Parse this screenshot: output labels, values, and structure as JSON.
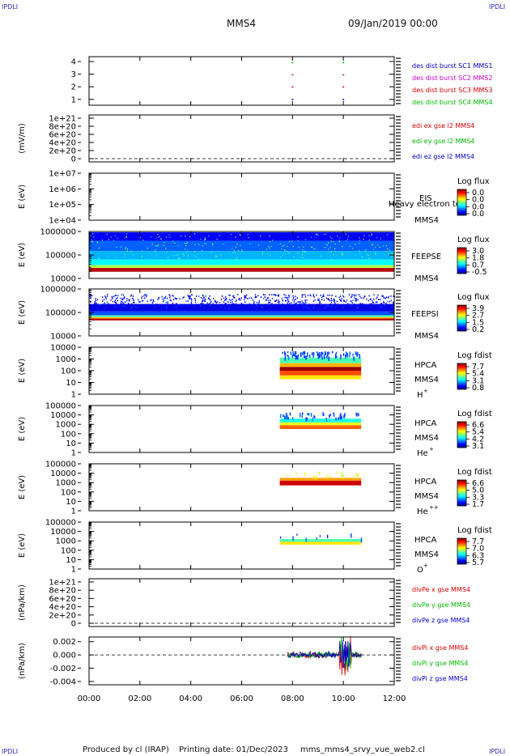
{
  "corner_label": "IPDLI",
  "header": {
    "spacecraft": "MMS4",
    "date": "09/Jan/2019 00:00"
  },
  "footer": {
    "produced_by": "Produced by cl (IRAP)",
    "printing_date": "Printing date: 01/Dec/2023",
    "script": "mms_mms4_srvy_vue_web2.cl"
  },
  "colors": {
    "blue": "#0000cc",
    "magenta": "#cc00cc",
    "red": "#dd0000",
    "green": "#00bb00"
  },
  "chart_data": {
    "type": "heatmap",
    "x": {
      "range": [
        "00:00",
        "12:00"
      ],
      "ticks": [
        "00:00",
        "02:00",
        "04:00",
        "06:00",
        "08:00",
        "10:00",
        "12:00"
      ]
    },
    "panels": [
      {
        "id": "burst",
        "ylabel": "",
        "yticks": [
          "4",
          "3",
          "2",
          "1"
        ],
        "legend": [
          {
            "text": "des dist burst SC1 MMS1",
            "color": "#0000cc"
          },
          {
            "text": "des dist burst SC2 MMS2",
            "color": "#cc00cc"
          },
          {
            "text": "des dist burst SC3 MMS3",
            "color": "#dd0000"
          },
          {
            "text": "des dist burst SC4 MMS4",
            "color": "#00bb00"
          }
        ],
        "burst_times_hours": [
          8.0,
          10.0
        ]
      },
      {
        "id": "edi",
        "ylabel": "(mV/m)",
        "yticks": [
          "1e+21",
          "8e+20",
          "6e+20",
          "4e+20",
          "2e+20",
          "0"
        ],
        "legend": [
          {
            "text": "edi ex gse l2 MMS4",
            "color": "#dd0000"
          },
          {
            "text": "edi ey gse l2 MMS4",
            "color": "#00bb00"
          },
          {
            "text": "edi ez gse l2 MMS4",
            "color": "#0000cc"
          }
        ]
      },
      {
        "id": "eis",
        "ylabel": "E (eV)",
        "yticks": [
          "1e+07",
          "1e+06",
          "1e+05",
          "1e+04"
        ],
        "labels": [
          "EIS",
          "Heavy electron tof",
          "MMS4"
        ],
        "cbar_title": "Log flux",
        "cbar_ticks": [
          "0.0",
          "0.0",
          "0.0",
          "0.0"
        ]
      },
      {
        "id": "feepse",
        "ylabel": "E (eV)",
        "yticks": [
          "1000000",
          "100000",
          "10000"
        ],
        "labels": [
          "FEEPSE",
          "MMS4"
        ],
        "cbar_title": "Log flux",
        "cbar_ticks": [
          "3.0",
          "1.8",
          "0.7",
          "-0.5"
        ],
        "coverage_hours": [
          0.0,
          12.0
        ]
      },
      {
        "id": "feepsi",
        "ylabel": "E (eV)",
        "yticks": [
          "1000000",
          "100000",
          "10000"
        ],
        "labels": [
          "FEEPSI",
          "MMS4"
        ],
        "cbar_title": "Log flux",
        "cbar_ticks": [
          "3.9",
          "2.7",
          "1.5",
          "0.2"
        ],
        "coverage_hours": [
          0.0,
          12.0
        ]
      },
      {
        "id": "hpca_h",
        "ylabel": "E (eV)",
        "yticks": [
          "10000",
          "1000",
          "100",
          "10",
          "1"
        ],
        "labels": [
          "HPCA",
          "MMS4",
          "H",
          "+"
        ],
        "cbar_title": "Log fdist",
        "cbar_ticks": [
          "7.7",
          "5.4",
          "3.1",
          "0.8"
        ],
        "coverage_hours": [
          7.5,
          10.7
        ]
      },
      {
        "id": "hpca_he",
        "ylabel": "E (eV)",
        "yticks": [
          "100000",
          "10000",
          "1000",
          "100",
          "10",
          "1"
        ],
        "labels": [
          "HPCA",
          "MMS4",
          "He",
          "+"
        ],
        "cbar_title": "Log fdist",
        "cbar_ticks": [
          "6.6",
          "5.4",
          "4.2",
          "3.1"
        ],
        "coverage_hours": [
          7.5,
          10.7
        ]
      },
      {
        "id": "hpca_he2",
        "ylabel": "E (eV)",
        "yticks": [
          "100000",
          "10000",
          "1000",
          "100",
          "10",
          "1"
        ],
        "labels": [
          "HPCA",
          "MMS4",
          "He",
          "++"
        ],
        "cbar_title": "Log fdist",
        "cbar_ticks": [
          "6.6",
          "5.0",
          "3.3",
          "1.7"
        ],
        "coverage_hours": [
          7.5,
          10.7
        ]
      },
      {
        "id": "hpca_o",
        "ylabel": "E (eV)",
        "yticks": [
          "100000",
          "10000",
          "1000",
          "100",
          "10",
          "1"
        ],
        "labels": [
          "HPCA",
          "MMS4",
          "O",
          "+"
        ],
        "cbar_title": "Log fdist",
        "cbar_ticks": [
          "7.7",
          "7.0",
          "6.3",
          "5.7"
        ],
        "coverage_hours": [
          7.5,
          10.7
        ]
      },
      {
        "id": "divpe",
        "ylabel": "(nPa/km)",
        "yticks": [
          "1e+21",
          "8e+20",
          "6e+20",
          "4e+20",
          "2e+20",
          "0"
        ],
        "legend": [
          {
            "text": "divPe x gse MMS4",
            "color": "#dd0000"
          },
          {
            "text": "divPe y gse MMS4",
            "color": "#00bb00"
          },
          {
            "text": "divPe z gse MMS4",
            "color": "#0000cc"
          }
        ]
      },
      {
        "id": "divpi",
        "ylabel": "(nPa/km)",
        "yticks": [
          "0.002",
          "0.000",
          "-0.002",
          "-0.004"
        ],
        "ylim": [
          -0.0045,
          0.0027
        ],
        "legend": [
          {
            "text": "divPi x gse MMS4",
            "color": "#dd0000"
          },
          {
            "text": "divPi y gse MMS4",
            "color": "#00bb00"
          },
          {
            "text": "divPi z gse MMS4",
            "color": "#0000cc"
          }
        ],
        "coverage_hours": [
          7.8,
          10.7
        ]
      }
    ]
  }
}
